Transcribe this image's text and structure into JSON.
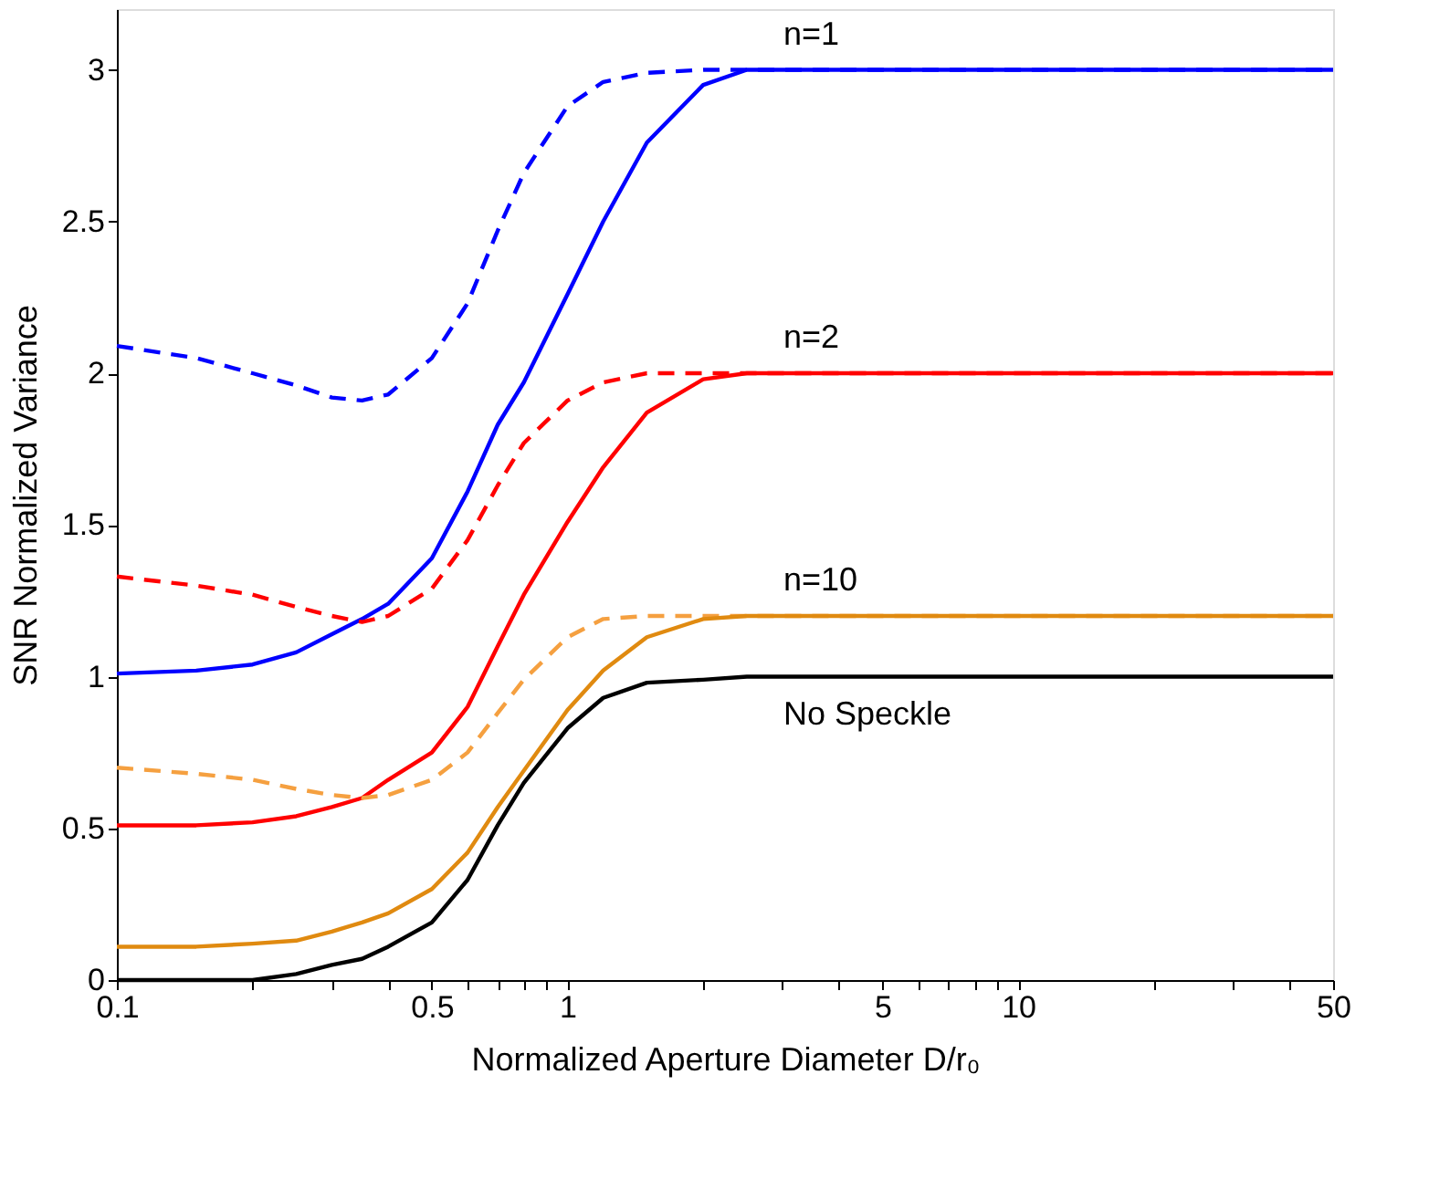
{
  "chart_data": {
    "type": "line",
    "xlabel": "Normalized Aperture Diameter D/r₀",
    "ylabel": "SNR Normalized Variance",
    "log": "x",
    "xlim": [
      0.1,
      50
    ],
    "ylim": [
      0,
      3.2
    ],
    "xticks": [
      0.1,
      {
        "value": 0.2,
        "label": null
      },
      {
        "value": 0.3,
        "label": null
      },
      {
        "value": 0.4,
        "label": null
      },
      0.5,
      {
        "value": 0.6,
        "label": null
      },
      {
        "value": 0.7,
        "label": null
      },
      {
        "value": 0.8,
        "label": null
      },
      {
        "value": 0.9,
        "label": null
      },
      1,
      {
        "value": 2,
        "label": null
      },
      {
        "value": 3,
        "label": null
      },
      {
        "value": 4,
        "label": null
      },
      5,
      {
        "value": 6,
        "label": null
      },
      {
        "value": 7,
        "label": null
      },
      {
        "value": 8,
        "label": null
      },
      {
        "value": 9,
        "label": null
      },
      10,
      {
        "value": 20,
        "label": null
      },
      {
        "value": 30,
        "label": null
      },
      {
        "value": 40,
        "label": null
      },
      50
    ],
    "yticks": [
      0,
      0.5,
      1,
      1.5,
      2,
      2.5,
      3
    ],
    "grid": false,
    "x": [
      0.1,
      0.15,
      0.2,
      0.25,
      0.3,
      0.35,
      0.4,
      0.5,
      0.6,
      0.7,
      0.8,
      1,
      1.2,
      1.5,
      2,
      2.5,
      50
    ],
    "series": [
      {
        "color": "#0000ff",
        "line_style": "dashed",
        "values": [
          2.09,
          2.05,
          2.0,
          1.96,
          1.92,
          1.91,
          1.93,
          2.05,
          2.23,
          2.47,
          2.66,
          2.88,
          2.96,
          2.99,
          3.0,
          3.0,
          3.0
        ]
      },
      {
        "name": "n=1",
        "color": "#0000ff",
        "line_style": "solid",
        "values": [
          1.01,
          1.02,
          1.04,
          1.08,
          1.14,
          1.19,
          1.24,
          1.39,
          1.61,
          1.83,
          1.97,
          2.26,
          2.5,
          2.76,
          2.95,
          3.0,
          3.0
        ]
      },
      {
        "color": "#ff0000",
        "line_style": "dashed",
        "values": [
          1.33,
          1.3,
          1.27,
          1.23,
          1.2,
          1.18,
          1.2,
          1.29,
          1.45,
          1.63,
          1.77,
          1.91,
          1.97,
          2.0,
          2.0,
          2.0,
          2.0
        ]
      },
      {
        "name": "n=2",
        "color": "#ff0000",
        "line_style": "solid",
        "values": [
          0.51,
          0.51,
          0.52,
          0.54,
          0.57,
          0.6,
          0.66,
          0.75,
          0.9,
          1.1,
          1.27,
          1.51,
          1.69,
          1.87,
          1.98,
          2.0,
          2.0
        ]
      },
      {
        "color": "#f5a040",
        "line_style": "dashed",
        "values": [
          0.7,
          0.68,
          0.66,
          0.63,
          0.61,
          0.6,
          0.61,
          0.66,
          0.75,
          0.88,
          0.99,
          1.13,
          1.19,
          1.2,
          1.2,
          1.2,
          1.2
        ]
      },
      {
        "name": "n=10",
        "color": "#e08a10",
        "line_style": "solid",
        "values": [
          0.11,
          0.11,
          0.12,
          0.13,
          0.16,
          0.19,
          0.22,
          0.3,
          0.42,
          0.57,
          0.69,
          0.89,
          1.02,
          1.13,
          1.19,
          1.2,
          1.2
        ]
      },
      {
        "name": "No Speckle",
        "color": "#000000",
        "line_style": "solid",
        "values": [
          0,
          0,
          0,
          0.02,
          0.05,
          0.07,
          0.11,
          0.19,
          0.33,
          0.51,
          0.65,
          0.83,
          0.93,
          0.98,
          0.99,
          1.0,
          1.0
        ]
      }
    ]
  }
}
